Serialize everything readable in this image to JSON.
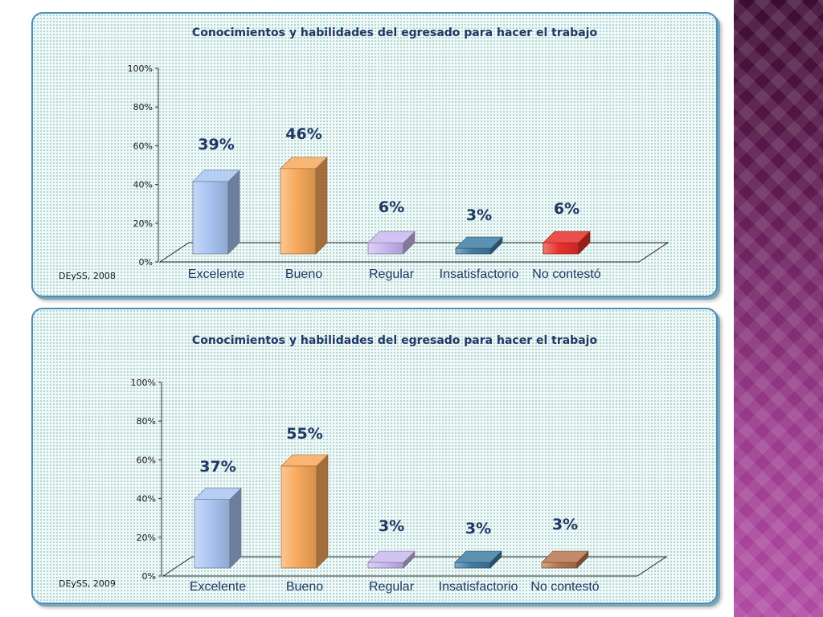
{
  "chart_data": [
    {
      "type": "bar",
      "title": "Conocimientos y habilidades del egresado para hacer el trabajo",
      "source": "DEySS, 2008",
      "categories": [
        "Excelente",
        "Bueno",
        "Regular",
        "Insatisfactorio",
        "No contestó"
      ],
      "values": [
        39,
        46,
        6,
        3,
        6
      ],
      "data_labels": [
        "39%",
        "46%",
        "6%",
        "3%",
        "6%"
      ],
      "y_ticks": [
        "0%",
        "20%",
        "40%",
        "60%",
        "80%",
        "100%"
      ],
      "ylim": [
        0,
        100
      ],
      "bar_colors": [
        "#a9c4f2",
        "#f7a95c",
        "#c9b8f0",
        "#3f7ea3",
        "#e8302a"
      ],
      "grid": false
    },
    {
      "type": "bar",
      "title": "Conocimientos y habilidades del egresado para hacer el trabajo",
      "source": "DEySS, 2009",
      "categories": [
        "Excelente",
        "Bueno",
        "Regular",
        "Insatisfactorio",
        "No contestó"
      ],
      "values": [
        37,
        55,
        3,
        3,
        3
      ],
      "data_labels": [
        "37%",
        "55%",
        "3%",
        "3%",
        "3%"
      ],
      "y_ticks": [
        "0%",
        "20%",
        "40%",
        "60%",
        "80%",
        "100%"
      ],
      "ylim": [
        0,
        100
      ],
      "bar_colors": [
        "#a9c4f2",
        "#f7a95c",
        "#c9b8f0",
        "#3f7ea3",
        "#b87550"
      ],
      "grid": false
    }
  ]
}
